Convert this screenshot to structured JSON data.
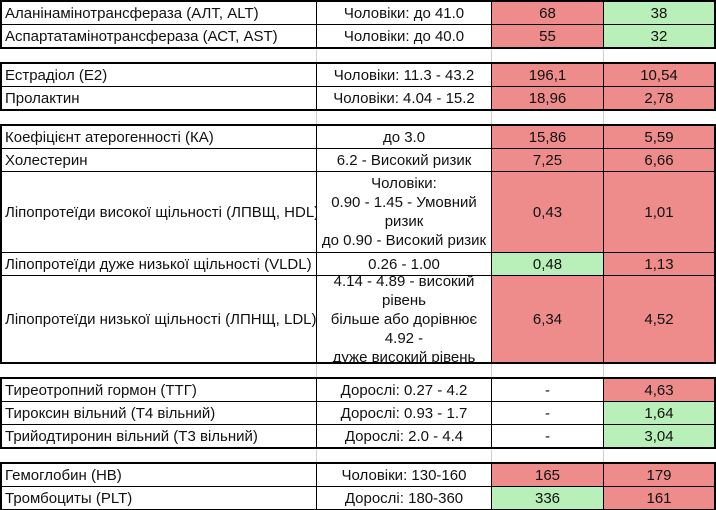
{
  "app": {
    "description": "Spreadsheet of laboratory blood test results with reference ranges and two result columns, highlighted red (out of range) or green (normal)"
  },
  "colors": {
    "result_bad": "#EE8C8B",
    "result_ok": "#B9F0B9",
    "border": "#000000",
    "gridline": "#CFCFCF"
  },
  "table": {
    "sections": [
      {
        "id": "liver-enzymes",
        "rows": [
          {
            "name": "Аланінамінотрансфераза (АЛТ, ALT)",
            "range": "Чоловіки: до 41.0",
            "v1": "68",
            "c1": "red",
            "v2": "38",
            "c2": "green"
          },
          {
            "name": "Аспартатамінотрансфераза (АСТ, AST)",
            "range": "Чоловіки: до 40.0",
            "v1": "55",
            "c1": "red",
            "v2": "32",
            "c2": "green"
          }
        ]
      },
      {
        "id": "sex-hormones",
        "rows": [
          {
            "name": "Естрадіол (Е2)",
            "range": "Чоловіки: 11.3 - 43.2",
            "v1": "196,1",
            "c1": "red",
            "v2": "10,54",
            "c2": "red"
          },
          {
            "name": "Пролактин",
            "range": "Чоловіки: 4.04 - 15.2",
            "v1": "18,96",
            "c1": "red",
            "v2": "2,78",
            "c2": "red"
          }
        ]
      },
      {
        "id": "lipids",
        "rows": [
          {
            "name": "Коефіцієнт атерогенності (КА)",
            "range": "до 3.0",
            "v1": "15,86",
            "c1": "red",
            "v2": "5,59",
            "c2": "red"
          },
          {
            "name": "Холестерин",
            "range": "6.2 - Високий ризик",
            "v1": "7,25",
            "c1": "red",
            "v2": "6,66",
            "c2": "red"
          },
          {
            "name": "Ліпопротеїди високої щільності (ЛПВЩ, HDL)",
            "range": "Чоловіки:\n0.90 - 1.45 - Умовний ризик\nдо 0.90 - Високий ризик",
            "v1": "0,43",
            "c1": "red",
            "v2": "1,01",
            "c2": "red"
          },
          {
            "name": "Ліпопротеїди дуже низької щільності (VLDL)",
            "range": "0.26 - 1.00",
            "v1": "0,48",
            "c1": "green",
            "v2": "1,13",
            "c2": "red"
          },
          {
            "name": "Ліпопротеїди низької щільності (ЛПНЩ, LDL)",
            "range": "4.14 - 4.89 - високий рівень\nбільше або дорівнює 4.92 -\nдуже високий рівень",
            "v1": "6,34",
            "c1": "red",
            "v2": "4,52",
            "c2": "red"
          }
        ]
      },
      {
        "id": "thyroid",
        "rows": [
          {
            "name": "Тиреотропний гормон (ТТГ)",
            "range": "Дорослі: 0.27 - 4.2",
            "v1": "-",
            "c1": "none",
            "v2": "4,63",
            "c2": "red"
          },
          {
            "name": "Тироксин вільний (Т4 вільний)",
            "range": "Дорослі: 0.93 - 1.7",
            "v1": "-",
            "c1": "none",
            "v2": "1,64",
            "c2": "green"
          },
          {
            "name": "Трийодтиронин вільний (Т3 вільний)",
            "range": "Дорослі: 2.0 - 4.4",
            "v1": "-",
            "c1": "none",
            "v2": "3,04",
            "c2": "green"
          }
        ]
      },
      {
        "id": "blood-count",
        "rows": [
          {
            "name": "Гемоглобин (НВ)",
            "range": "Чоловіки: 130-160",
            "v1": "165",
            "c1": "red",
            "v2": "179",
            "c2": "red"
          },
          {
            "name": "Тромбоциты (PLT)",
            "range": "Дорослі: 180-360",
            "v1": "336",
            "c1": "green",
            "v2": "161",
            "c2": "red"
          }
        ]
      }
    ]
  }
}
